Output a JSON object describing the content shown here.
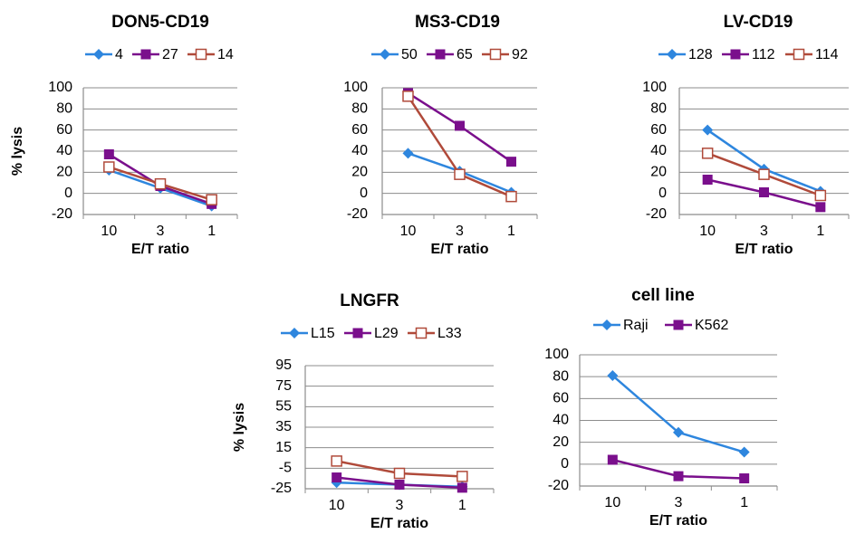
{
  "colors": {
    "series1": "#2e86de",
    "series2": "#7a0f8c",
    "series3": "#b04a3a",
    "grid": "#8c8c8c"
  },
  "chart_data": [
    {
      "type": "line",
      "title": "DON5-CD19",
      "xlabel": "E/T ratio",
      "ylabel": "% lysis",
      "categories": [
        "10",
        "3",
        "1"
      ],
      "yticks": [
        100,
        80,
        60,
        40,
        20,
        0,
        -20
      ],
      "ylim": [
        -20,
        100
      ],
      "grid": true,
      "legend": "top",
      "series": [
        {
          "name": "4",
          "values": [
            22,
            5,
            -12
          ],
          "marker": "diamond"
        },
        {
          "name": "27",
          "values": [
            37,
            7,
            -10
          ],
          "marker": "square"
        },
        {
          "name": "14",
          "values": [
            25,
            9,
            -6
          ],
          "marker": "open-square"
        }
      ]
    },
    {
      "type": "line",
      "title": "MS3-CD19",
      "xlabel": "E/T ratio",
      "ylabel": "",
      "categories": [
        "10",
        "3",
        "1"
      ],
      "yticks": [
        100,
        80,
        60,
        40,
        20,
        0,
        -20
      ],
      "ylim": [
        -20,
        100
      ],
      "grid": true,
      "legend": "top",
      "series": [
        {
          "name": "50",
          "values": [
            38,
            21,
            1
          ],
          "marker": "diamond"
        },
        {
          "name": "65",
          "values": [
            95,
            64,
            30
          ],
          "marker": "square"
        },
        {
          "name": "92",
          "values": [
            92,
            18,
            -3
          ],
          "marker": "open-square"
        }
      ]
    },
    {
      "type": "line",
      "title": "LV-CD19",
      "xlabel": "E/T ratio",
      "ylabel": "",
      "categories": [
        "10",
        "3",
        "1"
      ],
      "yticks": [
        100,
        80,
        60,
        40,
        20,
        0,
        -20
      ],
      "ylim": [
        -20,
        100
      ],
      "grid": true,
      "legend": "top",
      "series": [
        {
          "name": "128",
          "values": [
            60,
            23,
            2
          ],
          "marker": "diamond"
        },
        {
          "name": "112",
          "values": [
            13,
            1,
            -13
          ],
          "marker": "square"
        },
        {
          "name": "114",
          "values": [
            38,
            18,
            -2
          ],
          "marker": "open-square"
        }
      ]
    },
    {
      "type": "line",
      "title": "LNGFR",
      "xlabel": "E/T ratio",
      "ylabel": "% lysis",
      "categories": [
        "10",
        "3",
        "1"
      ],
      "yticks": [
        95,
        75,
        55,
        35,
        15,
        -5,
        -25
      ],
      "ylim": [
        -25,
        95
      ],
      "grid": true,
      "legend": "top",
      "series": [
        {
          "name": "L15",
          "values": [
            -19,
            -21,
            -23
          ],
          "marker": "diamond"
        },
        {
          "name": "L29",
          "values": [
            -14,
            -21,
            -24
          ],
          "marker": "square"
        },
        {
          "name": "L33",
          "values": [
            2,
            -10,
            -13
          ],
          "marker": "open-square"
        }
      ]
    },
    {
      "type": "line",
      "title": "cell line",
      "xlabel": "E/T ratio",
      "ylabel": "",
      "categories": [
        "10",
        "3",
        "1"
      ],
      "yticks": [
        100,
        80,
        60,
        40,
        20,
        0,
        -20
      ],
      "ylim": [
        -20,
        100
      ],
      "grid": true,
      "legend": "top",
      "series": [
        {
          "name": "Raji",
          "values": [
            81,
            29,
            11
          ],
          "marker": "diamond"
        },
        {
          "name": "K562",
          "values": [
            4,
            -11,
            -13
          ],
          "marker": "square"
        }
      ]
    }
  ]
}
